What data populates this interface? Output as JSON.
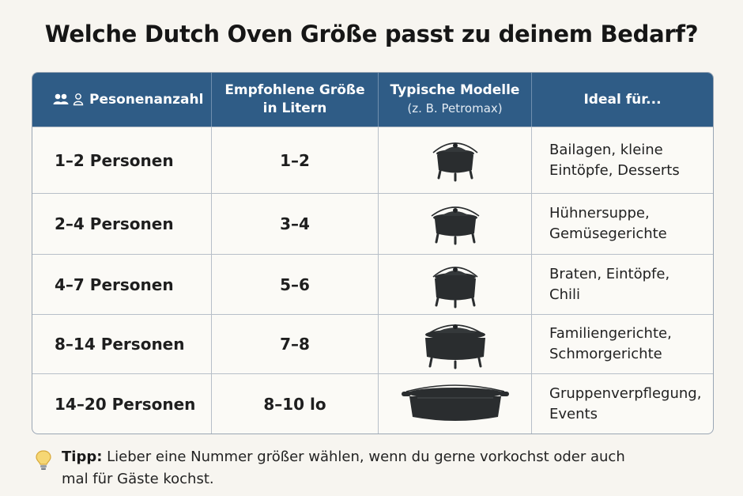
{
  "title": "Welche Dutch Oven Größe passt zu deinem Bedarf?",
  "header": {
    "col1": "Pesonenanzahl",
    "col2_line1": "Empfohlene Größe",
    "col2_line2": "in Litern",
    "col3_line1": "Typische Modelle",
    "col3_line2": "(z. B. Petromax)",
    "col4": "Ideal für..."
  },
  "rows": [
    {
      "persons": "1–2 Personen",
      "size": "1–2",
      "ideal": "Bailagen, kleine\nEintöpfe, Desserts"
    },
    {
      "persons": "2–4 Personen",
      "size": "3–4",
      "ideal": "Hühnersuppe,\nGemüsegerichte"
    },
    {
      "persons": "4–7 Personen",
      "size": "5–6",
      "ideal": "Braten, Eintöpfe,\nChili"
    },
    {
      "persons": "8–14 Personen",
      "size": "7–8",
      "ideal": "Familiengerichte,\nSchmorgerichte"
    },
    {
      "persons": "14–20 Personen",
      "size": "8–10 lo",
      "ideal": "Gruppenverpflegung,\nEvents"
    }
  ],
  "icons": {
    "people": "people-icon",
    "pot": "dutch-oven-icon",
    "tip": "lightbulb-icon"
  },
  "tip": {
    "label": "Tipp:",
    "text": " Lieber eine Nummer größer wählen, wenn du gerne vorkochst oder auch mal für Gäste kochst."
  },
  "colors": {
    "header_bg": "#2f5c86",
    "pot": "#2a2d2f"
  }
}
